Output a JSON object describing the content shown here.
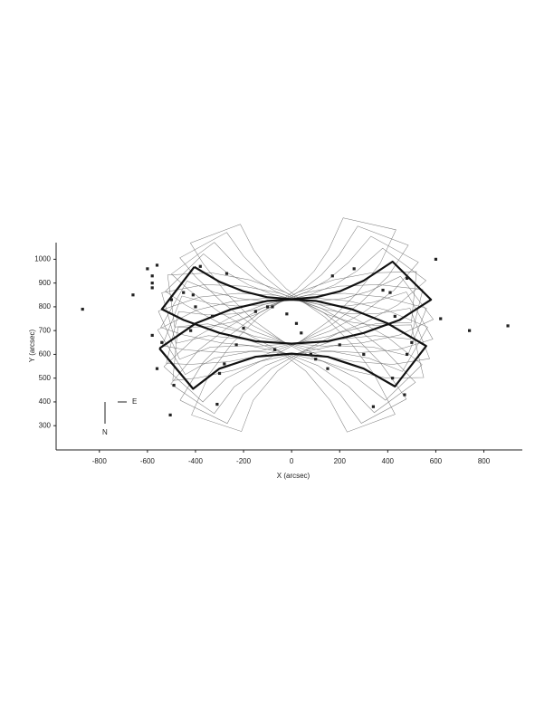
{
  "chart_data": {
    "type": "scatter",
    "x_label": "X (arcsec)",
    "y_label": "Y (arcsec)",
    "xlim": [
      -980,
      960
    ],
    "ylim": [
      198,
      1070
    ],
    "xticks": [
      -800,
      -600,
      -400,
      -200,
      0,
      200,
      400,
      600,
      800
    ],
    "yticks": [
      300,
      400,
      500,
      600,
      700,
      800,
      900,
      1000
    ],
    "annotations": [
      "E",
      "N"
    ],
    "color": "#222222",
    "outline_color": "#111111",
    "x": [
      -870,
      -660,
      -600,
      -580,
      -580,
      -560,
      -580,
      -500,
      -450,
      -410,
      -420,
      -580,
      -540,
      -560,
      -490,
      -505,
      -310,
      -280,
      -300,
      -230,
      -200,
      -150,
      -80,
      -20,
      20,
      40,
      -70,
      80,
      100,
      200,
      150,
      300,
      340,
      420,
      470,
      480,
      500,
      430,
      410,
      480,
      600,
      740,
      620,
      900,
      260,
      170,
      380,
      -400,
      -330,
      -100,
      -270,
      -380
    ],
    "y": [
      790,
      850,
      960,
      930,
      900,
      975,
      880,
      830,
      860,
      850,
      700,
      680,
      650,
      540,
      470,
      345,
      390,
      560,
      520,
      640,
      710,
      780,
      800,
      770,
      730,
      690,
      620,
      600,
      580,
      640,
      540,
      600,
      380,
      500,
      430,
      600,
      650,
      760,
      860,
      920,
      1000,
      700,
      750,
      720,
      960,
      930,
      870,
      800,
      760,
      800,
      940,
      970
    ],
    "outlines": [
      {
        "x": [
          -405,
          -300,
          -200,
          -100,
          0,
          100,
          200,
          300,
          420,
          580,
          450,
          300,
          150,
          0,
          -150,
          -300,
          -450,
          -540,
          -405
        ],
        "y": [
          968,
          905,
          865,
          840,
          832,
          840,
          865,
          910,
          990,
          830,
          745,
          690,
          655,
          645,
          655,
          690,
          745,
          790,
          968
        ]
      },
      {
        "x": [
          -550,
          -400,
          -250,
          -100,
          0,
          100,
          250,
          400,
          560,
          430,
          300,
          150,
          0,
          -150,
          -300,
          -410,
          -550
        ],
        "y": [
          625,
          730,
          790,
          825,
          830,
          825,
          790,
          730,
          635,
          465,
          540,
          590,
          603,
          590,
          540,
          455,
          625
        ]
      }
    ]
  }
}
